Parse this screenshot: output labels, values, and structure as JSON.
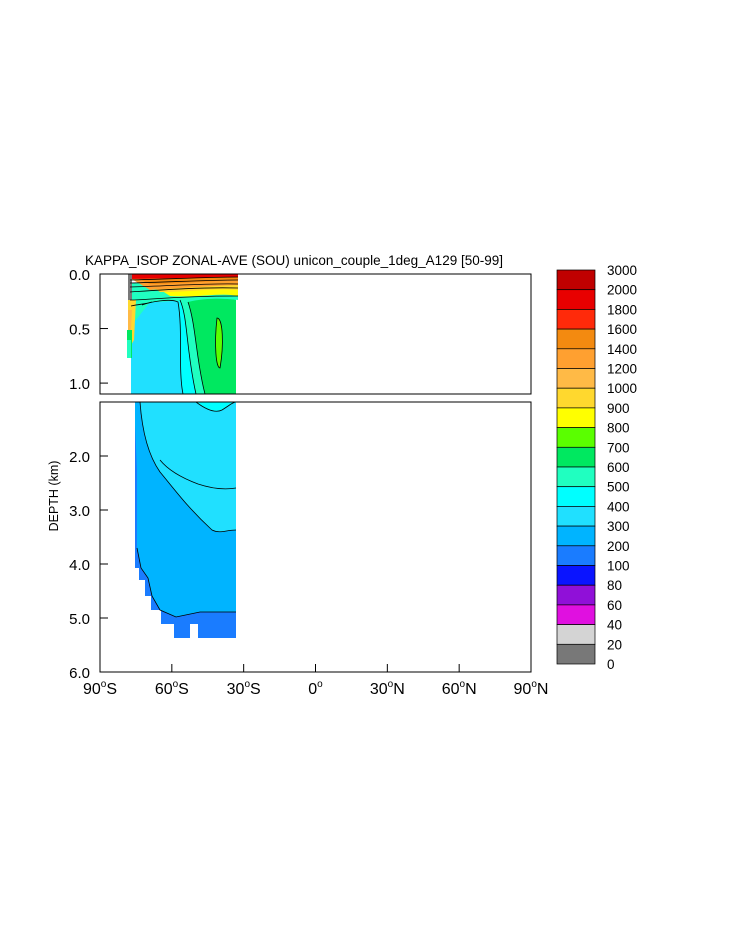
{
  "chart_data": {
    "type": "heatmap",
    "title": "KAPPA_ISOP ZONAL-AVE (SOU) unicon_couple_1deg_A129 [50-99]",
    "ylabel": "DEPTH (km)",
    "x_ticks": [
      {
        "value": -90,
        "deg": "90",
        "hemi": "S"
      },
      {
        "value": -60,
        "deg": "60",
        "hemi": "S"
      },
      {
        "value": -30,
        "deg": "30",
        "hemi": "S"
      },
      {
        "value": 0,
        "deg": "0",
        "hemi": ""
      },
      {
        "value": 30,
        "deg": "30",
        "hemi": "N"
      },
      {
        "value": 60,
        "deg": "60",
        "hemi": "N"
      },
      {
        "value": 90,
        "deg": "90",
        "hemi": "N"
      }
    ],
    "xlim": [
      -90,
      90
    ],
    "top_panel": {
      "ylim": [
        0.0,
        1.1
      ],
      "y_ticks": [
        {
          "value": 0.0,
          "label": "0.0"
        },
        {
          "value": 0.5,
          "label": "0.5"
        },
        {
          "value": 1.0,
          "label": "1.0"
        }
      ]
    },
    "bottom_panel": {
      "ylim": [
        1.0,
        6.0
      ],
      "y_ticks": [
        {
          "value": 2.0,
          "label": "2.0"
        },
        {
          "value": 3.0,
          "label": "3.0"
        },
        {
          "value": 4.0,
          "label": "4.0"
        },
        {
          "value": 5.0,
          "label": "5.0"
        },
        {
          "value": 6.0,
          "label": "6.0"
        }
      ]
    },
    "colorbar": {
      "levels": [
        "3000",
        "2000",
        "1800",
        "1600",
        "1400",
        "1200",
        "1000",
        "900",
        "800",
        "700",
        "600",
        "500",
        "400",
        "300",
        "200",
        "100",
        "80",
        "60",
        "40",
        "20",
        "0"
      ],
      "colors": [
        "#c00000",
        "#e80000",
        "#ff2a0a",
        "#f38a10",
        "#ffa030",
        "#ffba46",
        "#ffd82e",
        "#ffff00",
        "#5aff00",
        "#00e860",
        "#20ffc0",
        "#00ffff",
        "#20e0ff",
        "#00b4ff",
        "#1a7cff",
        "#0a14ff",
        "#9010d8",
        "#e010e0",
        "#d4d4d4",
        "#787878"
      ]
    },
    "regions": {
      "upper_band_0_200m": "400-1800 (multi-colour stratified)",
      "mid_water_lat_35_45S": "600-700",
      "interior_above_3km": "300-400",
      "deep_interior": "200-300",
      "bottom_floor": "100-200"
    }
  }
}
